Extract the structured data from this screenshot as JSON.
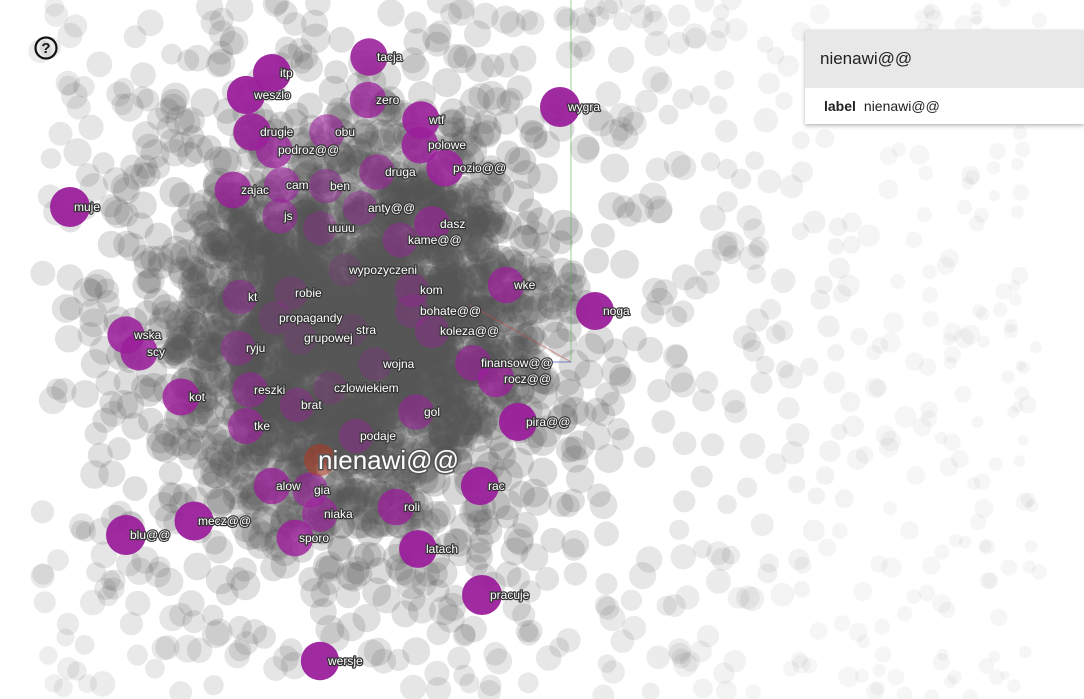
{
  "search": {
    "value": "nienawi@@",
    "result_key": "label",
    "result_value": "nienawi@@"
  },
  "help": {
    "icon": "help-circle-icon",
    "glyph": "?"
  },
  "colors": {
    "highlight": "#9b1f9b",
    "selected": "#b0361f",
    "cloud": "#555555",
    "axis_x": "#c0504d",
    "axis_y": "#4caf50",
    "axis_z": "#3f51b5"
  },
  "projection": {
    "selected_label": "nienawi@@",
    "neighbor_labels": [
      "tacja",
      "itp",
      "weszlo",
      "zero",
      "wygra",
      "wtf",
      "drugie",
      "obu",
      "polowe",
      "podroz@@",
      "druga",
      "pozio@@",
      "zajac",
      "cam",
      "ben",
      "muje",
      "anty@@",
      "js",
      "dasz",
      "uuuu",
      "kame@@",
      "wypozyczeni",
      "wke",
      "kt",
      "robie",
      "kom",
      "noga",
      "bohate@@",
      "propagandy",
      "stra",
      "koleza@@",
      "wska",
      "grupowej",
      "ryju",
      "scy",
      "wojna",
      "finansow@@",
      "rocz@@",
      "czlowiekiem",
      "kot",
      "reszki",
      "brat",
      "gol",
      "pira@@",
      "tke",
      "podaje",
      "alow",
      "rac",
      "gia",
      "roli",
      "niaka",
      "mecz@@",
      "blu@@",
      "sporo",
      "latach",
      "pracuje",
      "wersje"
    ]
  }
}
